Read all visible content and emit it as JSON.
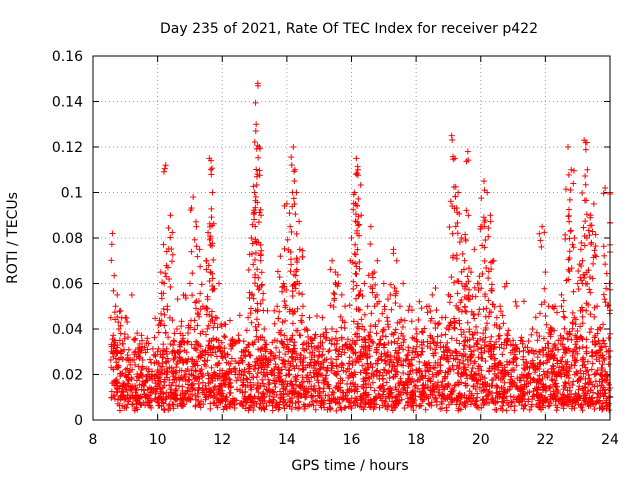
{
  "chart_data": {
    "type": "scatter",
    "title": "Day 235 of 2021, Rate Of TEC Index for receiver p422",
    "xlabel": "GPS time / hours",
    "ylabel": "ROTI / TECUs",
    "xlim": [
      8,
      24
    ],
    "ylim": [
      0,
      0.16
    ],
    "xticks": [
      "8",
      "10",
      "12",
      "14",
      "16",
      "18",
      "20",
      "22",
      "24"
    ],
    "yticks": [
      "0",
      "0.02",
      "0.04",
      "0.06",
      "0.08",
      "0.1",
      "0.12",
      "0.14",
      "0.16"
    ],
    "grid": true,
    "marker": "+",
    "color": "#ff0000",
    "series": [
      {
        "name": "ROTI",
        "x": [
          8.6,
          8.7,
          8.75,
          8.8,
          8.85,
          8.9,
          9.0,
          9.1,
          9.2,
          9.3,
          9.5,
          9.7,
          9.9,
          10.0,
          10.1,
          10.2,
          10.25,
          10.3,
          10.4,
          10.5,
          10.6,
          10.8,
          11.0,
          11.1,
          11.2,
          11.3,
          11.4,
          11.5,
          11.6,
          11.65,
          11.7,
          11.8,
          11.9,
          12.0,
          12.2,
          12.4,
          12.6,
          12.8,
          12.9,
          13.0,
          13.05,
          13.1,
          13.15,
          13.2,
          13.3,
          13.5,
          13.7,
          13.8,
          13.9,
          14.0,
          14.1,
          14.2,
          14.25,
          14.3,
          14.4,
          14.5,
          14.6,
          14.8,
          15.0,
          15.2,
          15.4,
          15.5,
          15.6,
          15.8,
          16.0,
          16.1,
          16.15,
          16.2,
          16.3,
          16.4,
          16.5,
          16.6,
          16.8,
          17.0,
          17.2,
          17.3,
          17.4,
          17.6,
          17.8,
          18.0,
          18.2,
          18.4,
          18.6,
          18.8,
          19.0,
          19.1,
          19.2,
          19.3,
          19.4,
          19.5,
          19.6,
          19.8,
          19.9,
          20.0,
          20.1,
          20.2,
          20.3,
          20.4,
          20.6,
          20.8,
          21.0,
          21.2,
          21.4,
          21.6,
          21.8,
          21.9,
          22.0,
          22.1,
          22.2,
          22.4,
          22.6,
          22.7,
          22.8,
          22.9,
          23.0,
          23.1,
          23.2,
          23.3,
          23.4,
          23.5,
          23.6,
          23.7,
          23.8,
          23.9,
          24.0,
          9.4,
          10.7,
          12.1,
          12.5,
          13.4,
          14.7,
          15.1,
          15.7,
          16.7,
          17.1,
          17.5,
          18.1,
          18.5,
          19.7,
          20.5,
          21.1,
          22.3,
          22.5,
          23.15,
          23.85
        ],
        "y": [
          0.082,
          0.05,
          0.055,
          0.04,
          0.048,
          0.03,
          0.045,
          0.02,
          0.018,
          0.015,
          0.022,
          0.02,
          0.025,
          0.03,
          0.065,
          0.06,
          0.112,
          0.05,
          0.09,
          0.035,
          0.04,
          0.055,
          0.06,
          0.098,
          0.085,
          0.075,
          0.05,
          0.07,
          0.115,
          0.11,
          0.1,
          0.045,
          0.06,
          0.03,
          0.025,
          0.02,
          0.03,
          0.045,
          0.08,
          0.1,
          0.13,
          0.148,
          0.12,
          0.09,
          0.04,
          0.03,
          0.05,
          0.072,
          0.06,
          0.095,
          0.085,
          0.12,
          0.11,
          0.1,
          0.075,
          0.05,
          0.04,
          0.035,
          0.03,
          0.04,
          0.07,
          0.065,
          0.06,
          0.05,
          0.08,
          0.1,
          0.115,
          0.11,
          0.09,
          0.06,
          0.05,
          0.085,
          0.07,
          0.06,
          0.055,
          0.075,
          0.07,
          0.06,
          0.05,
          0.04,
          0.03,
          0.05,
          0.058,
          0.045,
          0.055,
          0.125,
          0.115,
          0.1,
          0.08,
          0.07,
          0.118,
          0.075,
          0.06,
          0.085,
          0.105,
          0.1,
          0.09,
          0.07,
          0.05,
          0.06,
          0.035,
          0.03,
          0.025,
          0.04,
          0.03,
          0.085,
          0.065,
          0.05,
          0.04,
          0.035,
          0.045,
          0.12,
          0.11,
          0.08,
          0.06,
          0.075,
          0.123,
          0.11,
          0.09,
          0.095,
          0.05,
          0.04,
          0.035,
          0.03,
          0.1,
          0.03,
          0.038,
          0.042,
          0.035,
          0.048,
          0.045,
          0.045,
          0.055,
          0.065,
          0.045,
          0.05,
          0.052,
          0.055,
          0.065,
          0.045,
          0.032,
          0.05,
          0.055,
          0.07,
          0.102
        ]
      }
    ]
  }
}
